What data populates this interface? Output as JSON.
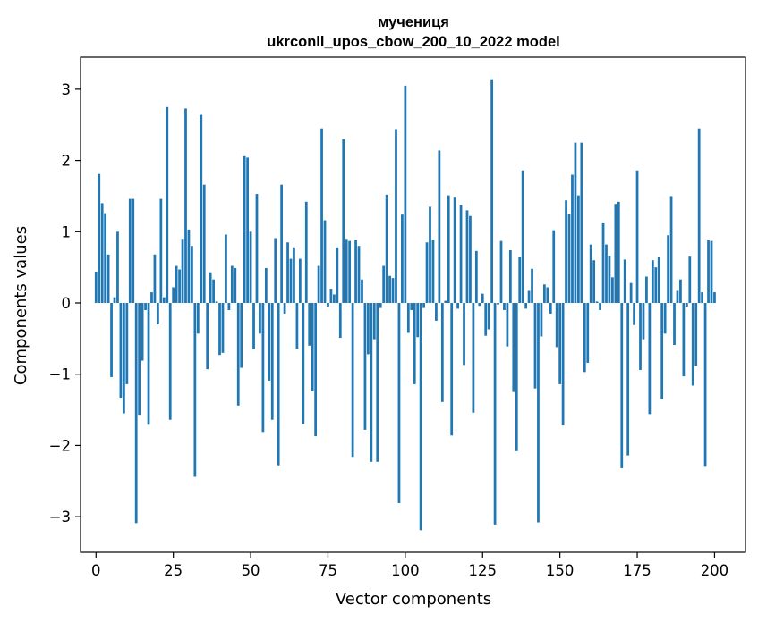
{
  "chart_data": {
    "type": "bar",
    "title": "мучениця",
    "subtitle": "ukrconll_upos_cbow_200_10_2022 model",
    "xlabel": "Vector components",
    "ylabel": "Components values",
    "xlim": [
      -5,
      210
    ],
    "ylim": [
      -3.5,
      3.45
    ],
    "xticks": [
      0,
      25,
      50,
      75,
      100,
      125,
      150,
      175,
      200
    ],
    "yticks": [
      -3,
      -2,
      -1,
      0,
      1,
      2,
      3
    ],
    "xtick_labels": [
      "0",
      "25",
      "50",
      "75",
      "100",
      "125",
      "150",
      "175",
      "200"
    ],
    "ytick_labels": [
      "−3",
      "−2",
      "−1",
      "0",
      "1",
      "2",
      "3"
    ],
    "grid": false,
    "bar_color": "#1f77b4",
    "values": [
      0.44,
      1.81,
      1.4,
      1.26,
      0.68,
      -1.04,
      0.08,
      1.0,
      -1.33,
      -1.55,
      -1.14,
      1.46,
      1.46,
      -3.09,
      -1.57,
      -0.81,
      -0.1,
      -1.71,
      0.15,
      0.68,
      -0.3,
      1.46,
      0.08,
      2.75,
      -1.64,
      0.22,
      0.52,
      0.47,
      0.9,
      2.73,
      1.03,
      0.8,
      -2.44,
      -0.43,
      2.64,
      1.66,
      -0.93,
      0.43,
      0.33,
      0.02,
      -0.73,
      -0.7,
      0.96,
      -0.1,
      0.52,
      0.49,
      -1.44,
      -0.91,
      2.06,
      2.04,
      1.0,
      -0.65,
      1.53,
      -0.43,
      -1.81,
      0.49,
      -1.09,
      -1.64,
      0.91,
      -2.28,
      1.66,
      -0.15,
      0.85,
      0.62,
      0.78,
      -0.64,
      0.62,
      -1.7,
      1.42,
      -0.6,
      -1.24,
      -1.87,
      0.52,
      2.45,
      1.16,
      -0.05,
      0.2,
      0.12,
      0.78,
      -0.49,
      2.3,
      0.9,
      0.87,
      -2.16,
      0.88,
      0.8,
      0.33,
      -1.78,
      -0.72,
      -2.23,
      -0.51,
      -2.23,
      -0.07,
      0.52,
      1.52,
      0.38,
      0.35,
      2.44,
      -2.81,
      1.24,
      3.05,
      -0.42,
      -0.1,
      -1.14,
      -0.48,
      -3.19,
      -0.07,
      0.85,
      1.35,
      0.89,
      -0.25,
      2.14,
      -1.39,
      0.03,
      1.51,
      -1.86,
      1.49,
      -0.08,
      1.38,
      -0.87,
      1.3,
      1.22,
      -1.54,
      0.73,
      -0.04,
      0.13,
      -0.46,
      -0.37,
      3.14,
      -3.11,
      -0.02,
      0.87,
      -0.1,
      -0.61,
      0.74,
      -1.25,
      -2.08,
      0.64,
      1.86,
      -0.08,
      0.17,
      0.48,
      -1.2,
      -3.08,
      -0.47,
      0.26,
      0.22,
      -0.15,
      1.02,
      -0.62,
      -1.14,
      -1.72,
      1.44,
      1.25,
      1.8,
      2.25,
      1.51,
      2.25,
      -0.97,
      -0.84,
      0.82,
      0.6,
      0.02,
      -0.1,
      1.13,
      0.82,
      0.66,
      0.36,
      1.39,
      1.42,
      -2.32,
      0.61,
      -2.14,
      0.28,
      -0.31,
      1.86,
      -0.94,
      -0.51,
      0.37,
      -1.56,
      0.6,
      0.5,
      0.64,
      -1.35,
      -0.43,
      0.95,
      1.5,
      -0.59,
      0.17,
      0.33,
      -1.03,
      -0.05,
      0.65,
      -1.16,
      -0.88,
      2.45,
      0.15,
      -2.3,
      0.88,
      0.87,
      0.15
    ]
  }
}
